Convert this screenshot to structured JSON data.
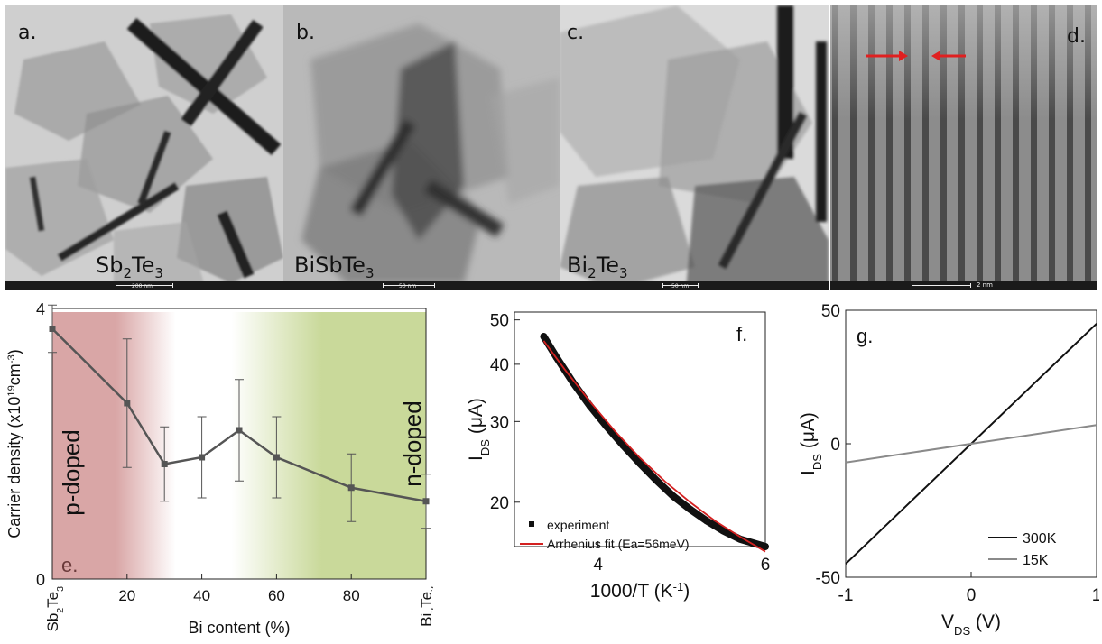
{
  "tem_panels": [
    {
      "letter": "a.",
      "material_parts": [
        "Sb",
        "2",
        "Te",
        "3"
      ],
      "scale": "200 nm"
    },
    {
      "letter": "b.",
      "material_parts": [
        "BiSbTe",
        "3"
      ],
      "scale": "50 nm"
    },
    {
      "letter": "c.",
      "material_parts": [
        "Bi",
        "2",
        "Te",
        "3"
      ],
      "scale": "50 nm"
    },
    {
      "letter": "d.",
      "scale": "2 nm"
    }
  ],
  "colors": {
    "p_region": "#d9a6a6",
    "n_region": "#c9d99a",
    "fit_line": "#d32020",
    "line_15K": "#8a8a8a",
    "data_e": "#555555"
  },
  "chart_data": [
    {
      "panel": "e.",
      "type": "line",
      "ylabel": "Carrier density (x10¹⁹cm⁻³)",
      "xlabel": "Bi content (%)",
      "xlim": [
        0,
        100
      ],
      "ylim": [
        0,
        4
      ],
      "x_ticks": [
        "Sb2Te3",
        "20",
        "40",
        "60",
        "80",
        "Bi2Te3"
      ],
      "y_ticks": [
        "0",
        "4"
      ],
      "annotations": [
        "p-doped",
        "n-doped"
      ],
      "x": [
        0,
        20,
        30,
        40,
        50,
        60,
        80,
        100
      ],
      "y": [
        3.7,
        2.6,
        1.7,
        1.8,
        2.2,
        1.8,
        1.35,
        1.15
      ],
      "err": [
        0.35,
        0.95,
        0.55,
        0.6,
        0.75,
        0.6,
        0.5,
        0.4
      ]
    },
    {
      "panel": "f.",
      "type": "scatter",
      "xlabel": "1000/T (K⁻¹)",
      "ylabel": "I_DS (μA)",
      "xlim": [
        3.0,
        6.0
      ],
      "ylim": [
        16,
        52
      ],
      "yscale": "log",
      "x_ticks": [
        "4",
        "6"
      ],
      "y_ticks": [
        "20",
        "30",
        "40",
        "50"
      ],
      "series": [
        {
          "name": "experiment",
          "x": [
            3.35,
            3.5,
            3.7,
            3.9,
            4.1,
            4.3,
            4.5,
            4.7,
            4.9,
            5.1,
            5.3,
            5.5,
            5.7,
            6.0
          ],
          "y": [
            46,
            41.5,
            36.5,
            32.5,
            29.3,
            26.6,
            24.3,
            22.3,
            20.6,
            19.3,
            18.2,
            17.3,
            16.6,
            16.0
          ]
        },
        {
          "name": "Arrhenius fit (Ea=56meV)",
          "x": [
            3.35,
            3.6,
            3.9,
            4.2,
            4.5,
            4.8,
            5.1,
            5.4,
            5.7,
            6.0
          ],
          "y": [
            45,
            39,
            33.2,
            28.6,
            25,
            22.2,
            20,
            18.2,
            16.8,
            15.6
          ]
        }
      ]
    },
    {
      "panel": "g.",
      "type": "line",
      "xlabel": "V_DS (V)",
      "ylabel": "I_DS (μA)",
      "xlim": [
        -1,
        1
      ],
      "ylim": [
        -50,
        50
      ],
      "x_ticks": [
        "-1",
        "0",
        "1"
      ],
      "y_ticks": [
        "-50",
        "0",
        "50"
      ],
      "series": [
        {
          "name": "300K",
          "x": [
            -1,
            1
          ],
          "y": [
            -45,
            45
          ]
        },
        {
          "name": "15K",
          "x": [
            -1,
            1
          ],
          "y": [
            -7,
            7
          ]
        }
      ]
    }
  ]
}
